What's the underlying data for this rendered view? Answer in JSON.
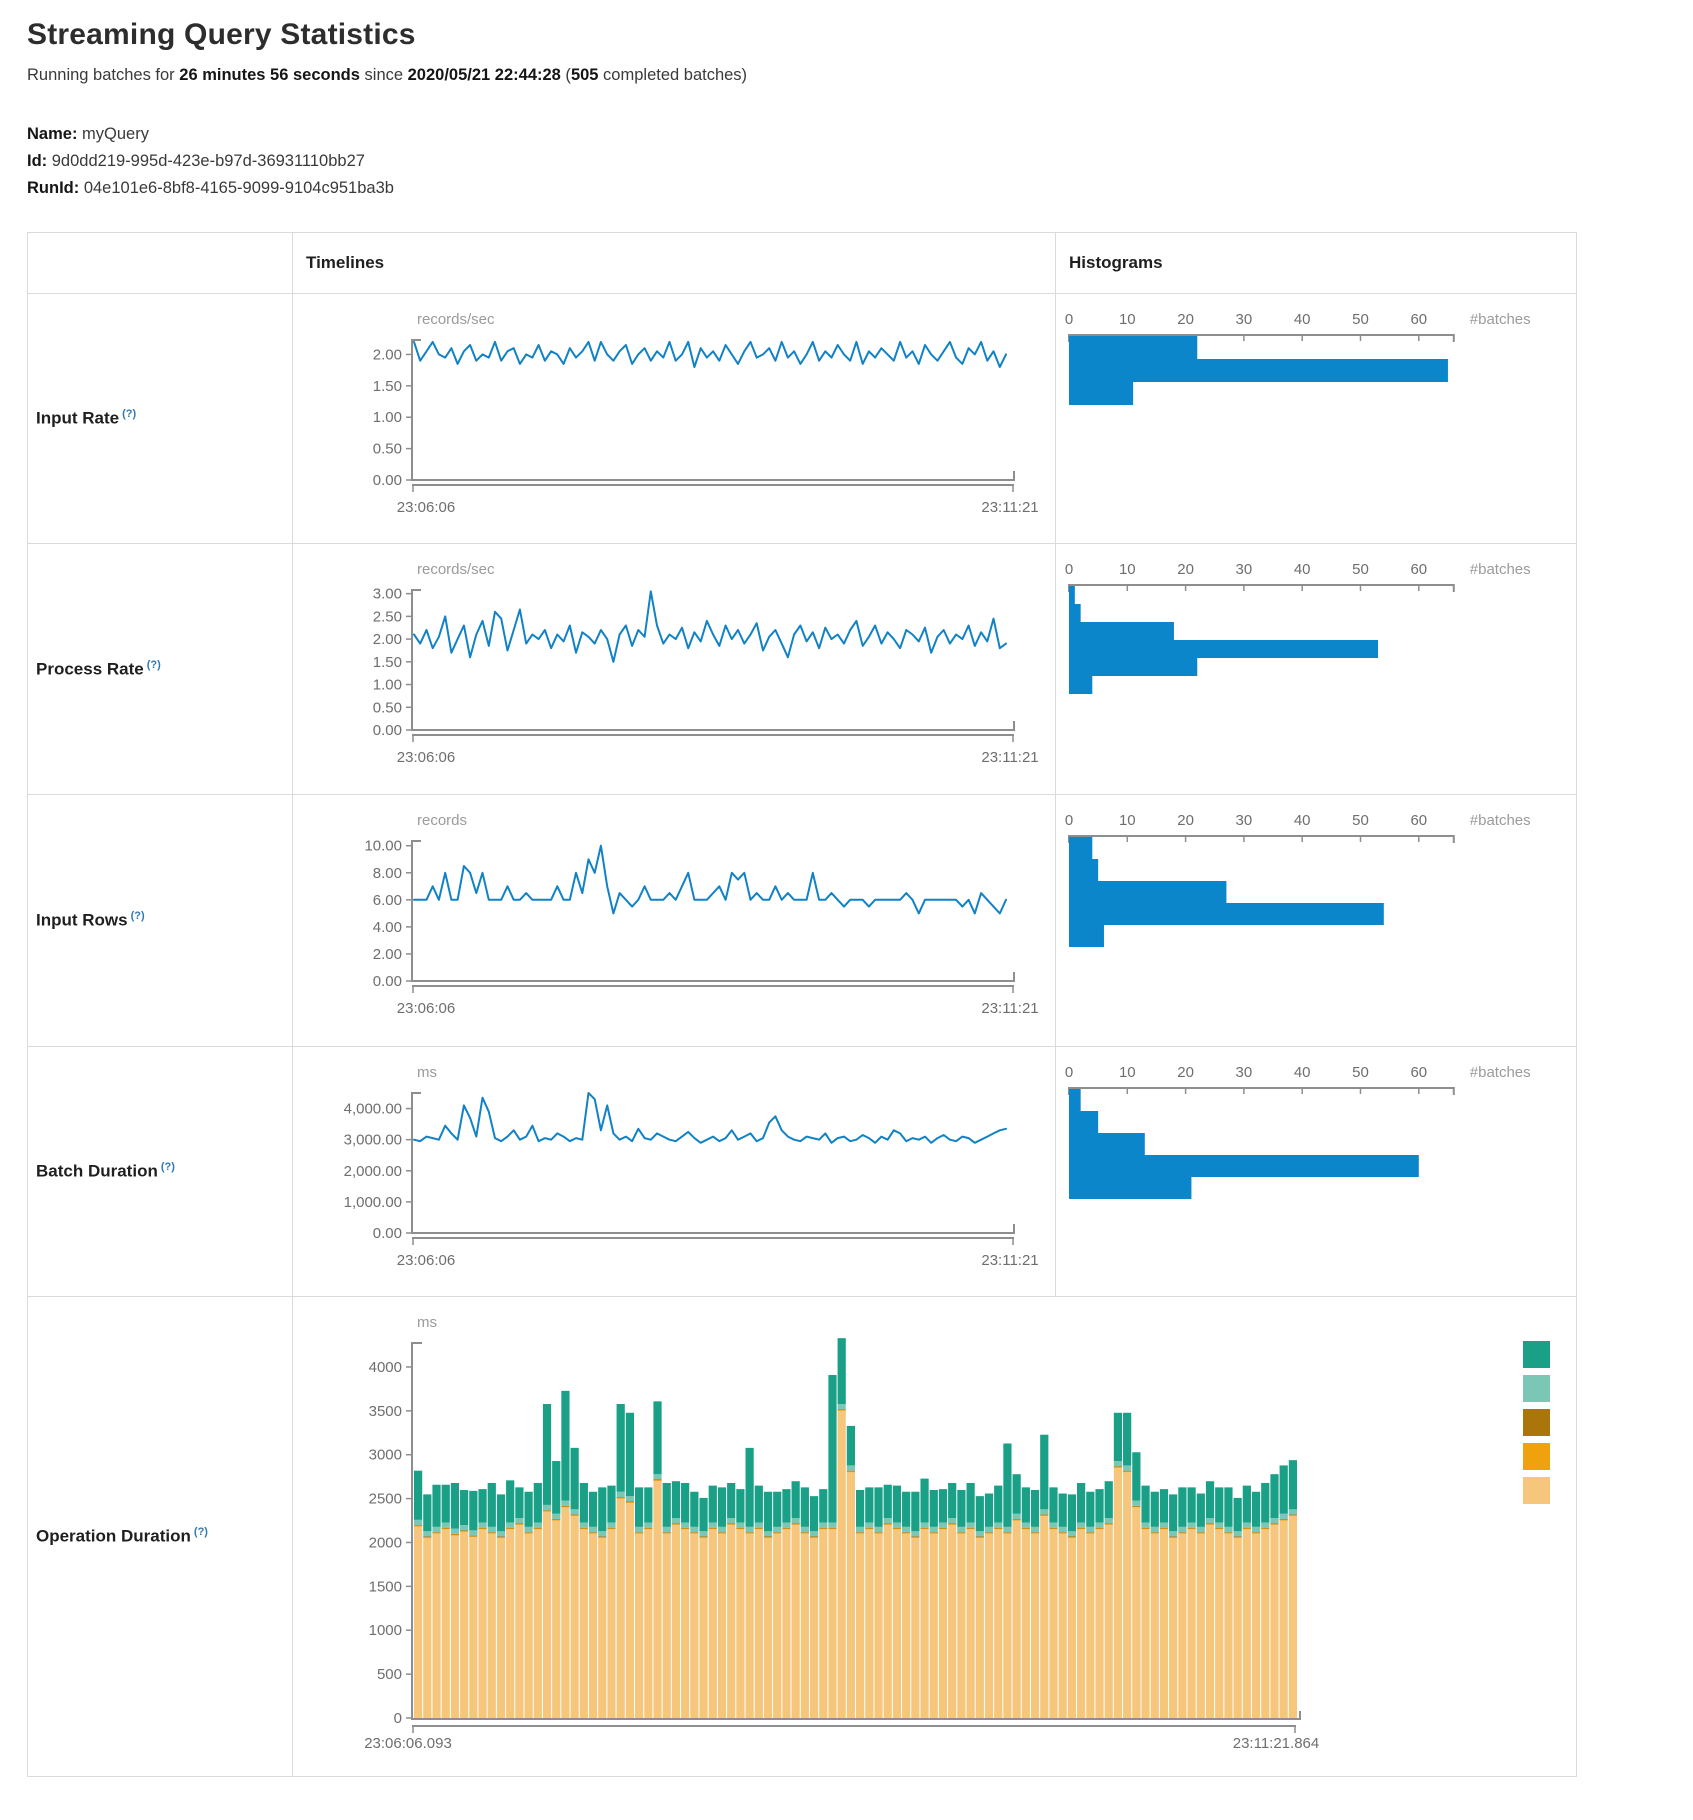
{
  "header": {
    "title": "Streaming Query Statistics",
    "subtitle": {
      "p1": "Running batches for ",
      "duration": "26 minutes 56 seconds",
      "p2": " since ",
      "start_time": "2020/05/21 22:44:28",
      "p3": " (",
      "completed_count": "505",
      "p4": " completed batches)"
    },
    "meta": {
      "name_label": "Name:",
      "name_value": " myQuery",
      "id_label": "Id:",
      "id_value": " 9d0dd219-995d-423e-b97d-36931110bb27",
      "runid_label": "RunId:",
      "runid_value": " 04e101e6-8bf8-4165-9099-9104c951ba3b"
    }
  },
  "table": {
    "col_timelines": "Timelines",
    "col_histograms": "Histograms",
    "help_marker": "(?)",
    "rows": [
      {
        "label": "Input Rate"
      },
      {
        "label": "Process Rate"
      },
      {
        "label": "Input Rows"
      },
      {
        "label": "Batch Duration"
      },
      {
        "label": "Operation Duration"
      }
    ]
  },
  "colors": {
    "line_blue": "#1182c5",
    "hist_blue": "#0c86cb",
    "axis_gray": "#8e8e8e",
    "tick_text_gray": "#6e6e6e",
    "unit_text_gray": "#9b9b9b",
    "tan": "#f6c67d",
    "orange": "#f0a10e",
    "brown": "#aa750b",
    "light_teal": "#7ac7b6",
    "dark_teal": "#19a087"
  },
  "chart_data": {
    "input_rate": {
      "timeline": {
        "type": "line",
        "unit": "records/sec",
        "x_start": "23:06:06",
        "x_end": "23:11:21",
        "ytick_values": [
          2,
          1.5,
          1,
          0.5,
          0
        ],
        "ytick_labels": [
          "2.00",
          "1.50",
          "1.00",
          "0.50",
          "0.00"
        ],
        "ymax": 2.23,
        "values": [
          2.2,
          1.9,
          2.05,
          2.2,
          2.0,
          1.95,
          2.1,
          1.85,
          2.05,
          2.15,
          1.9,
          2.0,
          1.95,
          2.2,
          1.9,
          2.05,
          2.1,
          1.85,
          2.0,
          1.95,
          2.15,
          1.9,
          2.05,
          2.0,
          1.85,
          2.1,
          1.95,
          2.05,
          2.2,
          1.9,
          2.2,
          2.0,
          1.9,
          2.05,
          2.15,
          1.85,
          2.0,
          2.1,
          1.9,
          2.05,
          1.95,
          2.2,
          1.9,
          2.0,
          2.2,
          1.8,
          2.1,
          1.95,
          2.05,
          1.9,
          2.15,
          2.0,
          1.85,
          2.05,
          2.2,
          1.95,
          2.0,
          2.1,
          1.9,
          2.2,
          1.95,
          2.05,
          1.85,
          2.0,
          2.2,
          1.9,
          2.05,
          1.95,
          2.15,
          2.0,
          1.9,
          2.2,
          1.85,
          2.05,
          1.95,
          2.1,
          2.0,
          1.9,
          2.2,
          1.95,
          2.05,
          1.85,
          2.15,
          2.0,
          1.9,
          2.05,
          2.2,
          1.95,
          1.85,
          2.1,
          2.0,
          2.2,
          1.9,
          2.05,
          1.8,
          2.0
        ]
      },
      "histogram": {
        "type": "bar",
        "xlabel": "#batches",
        "xticks": [
          0,
          10,
          20,
          30,
          40,
          50,
          60
        ],
        "bins": [
          22,
          65,
          11
        ]
      }
    },
    "process_rate": {
      "timeline": {
        "type": "line",
        "unit": "records/sec",
        "x_start": "23:06:06",
        "x_end": "23:11:21",
        "ytick_values": [
          3,
          2.5,
          2,
          1.5,
          1,
          0.5,
          0
        ],
        "ytick_labels": [
          "3.00",
          "2.50",
          "2.00",
          "1.50",
          "1.00",
          "0.50",
          "0.00"
        ],
        "ymax": 3.08,
        "values": [
          2.1,
          1.9,
          2.2,
          1.8,
          2.05,
          2.5,
          1.7,
          2.0,
          2.3,
          1.6,
          2.1,
          2.4,
          1.85,
          2.6,
          2.45,
          1.75,
          2.2,
          2.65,
          1.9,
          2.1,
          2.0,
          2.2,
          1.8,
          2.1,
          1.95,
          2.3,
          1.7,
          2.15,
          2.05,
          1.9,
          2.2,
          2.0,
          1.5,
          2.1,
          2.3,
          1.85,
          2.2,
          2.05,
          3.05,
          2.3,
          1.9,
          2.1,
          2.0,
          2.25,
          1.8,
          2.15,
          1.95,
          2.4,
          2.1,
          1.85,
          2.3,
          2.0,
          2.2,
          1.9,
          2.1,
          2.35,
          1.75,
          2.05,
          2.2,
          1.9,
          1.6,
          2.1,
          2.3,
          1.95,
          2.15,
          1.8,
          2.25,
          2.0,
          2.1,
          1.9,
          2.2,
          2.4,
          1.85,
          2.05,
          2.3,
          1.9,
          2.15,
          2.0,
          1.8,
          2.2,
          2.1,
          1.95,
          2.25,
          1.7,
          2.05,
          2.2,
          1.9,
          2.1,
          2.0,
          2.3,
          1.85,
          2.15,
          1.95,
          2.45,
          1.8,
          1.9
        ]
      },
      "histogram": {
        "type": "bar",
        "xlabel": "#batches",
        "xticks": [
          0,
          10,
          20,
          30,
          40,
          50,
          60
        ],
        "bins": [
          1,
          2,
          18,
          53,
          22,
          4
        ]
      }
    },
    "input_rows": {
      "timeline": {
        "type": "line",
        "unit": "records",
        "x_start": "23:06:06",
        "x_end": "23:11:21",
        "ytick_values": [
          10,
          8,
          6,
          4,
          2,
          0
        ],
        "ytick_labels": [
          "10.00",
          "8.00",
          "6.00",
          "4.00",
          "2.00",
          "0.00"
        ],
        "ymax": 10.35,
        "values": [
          6,
          6,
          6,
          7,
          6,
          8,
          6,
          6,
          8.5,
          8,
          6.5,
          8,
          6,
          6,
          6,
          7,
          6,
          6,
          6.5,
          6,
          6,
          6,
          6,
          7,
          6,
          6,
          8,
          6.5,
          9,
          8,
          10,
          7,
          5,
          6.5,
          6,
          5.5,
          6,
          7,
          6,
          6,
          6,
          6.5,
          6,
          7,
          8,
          6,
          6,
          6,
          6.5,
          7,
          6,
          8,
          7.5,
          8,
          6,
          6.5,
          6,
          6,
          7,
          6,
          6.5,
          6,
          6,
          6,
          8,
          6,
          6,
          6.5,
          6,
          5.5,
          6,
          6,
          6,
          5.5,
          6,
          6,
          6,
          6,
          6,
          6.5,
          6,
          5,
          6,
          6,
          6,
          6,
          6,
          6,
          5.5,
          6,
          5,
          6.5,
          6,
          5.5,
          5,
          6
        ]
      },
      "histogram": {
        "type": "bar",
        "xlabel": "#batches",
        "xticks": [
          0,
          10,
          20,
          30,
          40,
          50,
          60
        ],
        "bins": [
          4,
          5,
          27,
          54,
          6
        ]
      }
    },
    "batch_duration": {
      "timeline": {
        "type": "line",
        "unit": "ms",
        "x_start": "23:06:06",
        "x_end": "23:11:21",
        "ytick_values": [
          4000,
          3000,
          2000,
          1000,
          0
        ],
        "ytick_labels": [
          "4,000.00",
          "3,000.00",
          "2,000.00",
          "1,000.00",
          "0.00"
        ],
        "ymax": 4500,
        "values": [
          3000,
          2950,
          3100,
          3050,
          3000,
          3450,
          3200,
          3000,
          4100,
          3700,
          3100,
          4350,
          3900,
          3050,
          2950,
          3100,
          3300,
          3000,
          3100,
          3450,
          2950,
          3050,
          3000,
          3200,
          3100,
          2950,
          3050,
          3000,
          4500,
          4300,
          3300,
          4100,
          3200,
          3000,
          3100,
          2950,
          3350,
          3050,
          3000,
          3200,
          3100,
          3000,
          2950,
          3100,
          3250,
          3050,
          2900,
          3000,
          3100,
          2950,
          3050,
          3300,
          3000,
          3100,
          3200,
          2950,
          3050,
          3550,
          3750,
          3300,
          3100,
          3000,
          2950,
          3100,
          3050,
          3000,
          3200,
          2900,
          3050,
          3100,
          2950,
          3000,
          3150,
          3050,
          2900,
          3100,
          3000,
          3300,
          3200,
          2950,
          3050,
          3000,
          3100,
          2900,
          3050,
          3150,
          3000,
          2950,
          3100,
          3050,
          2900,
          3000,
          3100,
          3200,
          3300,
          3350
        ]
      },
      "histogram": {
        "type": "bar",
        "xlabel": "#batches",
        "xticks": [
          0,
          10,
          20,
          30,
          40,
          50,
          60
        ],
        "bins": [
          2,
          5,
          13,
          60,
          21
        ]
      }
    },
    "operation_duration": {
      "type": "stacked-bar",
      "unit": "ms",
      "x_start": "23:06:06.093",
      "x_end": "23:11:21.864",
      "ytick_values": [
        4000,
        3500,
        3000,
        2500,
        2000,
        1500,
        1000,
        500,
        0
      ],
      "ytick_labels": [
        "4000",
        "3500",
        "3000",
        "2500",
        "2000",
        "1500",
        "1000",
        "500",
        "0"
      ],
      "ymax": 4273,
      "series": [
        {
          "name": "tan",
          "color": "#f6c67d",
          "values": [
            2180,
            2050,
            2100,
            2150,
            2080,
            2120,
            2060,
            2150,
            2100,
            2050,
            2150,
            2200,
            2100,
            2150,
            2350,
            2250,
            2400,
            2300,
            2150,
            2100,
            2050,
            2150,
            2500,
            2450,
            2100,
            2150,
            2700,
            2100,
            2200,
            2150,
            2100,
            2050,
            2150,
            2100,
            2200,
            2150,
            2100,
            2150,
            2050,
            2100,
            2150,
            2200,
            2100,
            2050,
            2150,
            2150,
            3500,
            2800,
            2100,
            2150,
            2100,
            2200,
            2150,
            2100,
            2050,
            2150,
            2100,
            2150,
            2200,
            2100,
            2150,
            2050,
            2100,
            2150,
            2100,
            2250,
            2150,
            2100,
            2300,
            2150,
            2100,
            2050,
            2150,
            2100,
            2150,
            2200,
            2850,
            2800,
            2400,
            2150,
            2100,
            2150,
            2050,
            2100,
            2150,
            2100,
            2200,
            2150,
            2100,
            2050,
            2150,
            2100,
            2150,
            2200,
            2250,
            2300
          ]
        },
        {
          "name": "orange",
          "color": "#f0a10e",
          "const": 10
        },
        {
          "name": "brown",
          "color": "#aa750b",
          "const": 8
        },
        {
          "name": "light-teal",
          "color": "#7ac7b6",
          "const": 60
        },
        {
          "name": "dark-teal",
          "color": "#19a087",
          "values": [
            560,
            420,
            480,
            430,
            520,
            400,
            450,
            380,
            500,
            420,
            480,
            350,
            400,
            450,
            1150,
            600,
            1250,
            700,
            450,
            400,
            500,
            420,
            1000,
            950,
            450,
            400,
            830,
            500,
            420,
            450,
            400,
            380,
            420,
            450,
            400,
            380,
            900,
            420,
            450,
            400,
            380,
            420,
            450,
            400,
            380,
            1680,
            750,
            450,
            420,
            400,
            450,
            380,
            420,
            400,
            450,
            500,
            420,
            380,
            400,
            420,
            450,
            400,
            380,
            420,
            950,
            450,
            400,
            420,
            850,
            400,
            380,
            420,
            450,
            400,
            380,
            420,
            550,
            600,
            550,
            420,
            400,
            380,
            420,
            450,
            400,
            380,
            420,
            400,
            450,
            380,
            420,
            400,
            450,
            500,
            550,
            560
          ]
        }
      ],
      "legend_order": [
        "dark-teal",
        "light-teal",
        "brown",
        "orange",
        "tan"
      ]
    }
  }
}
